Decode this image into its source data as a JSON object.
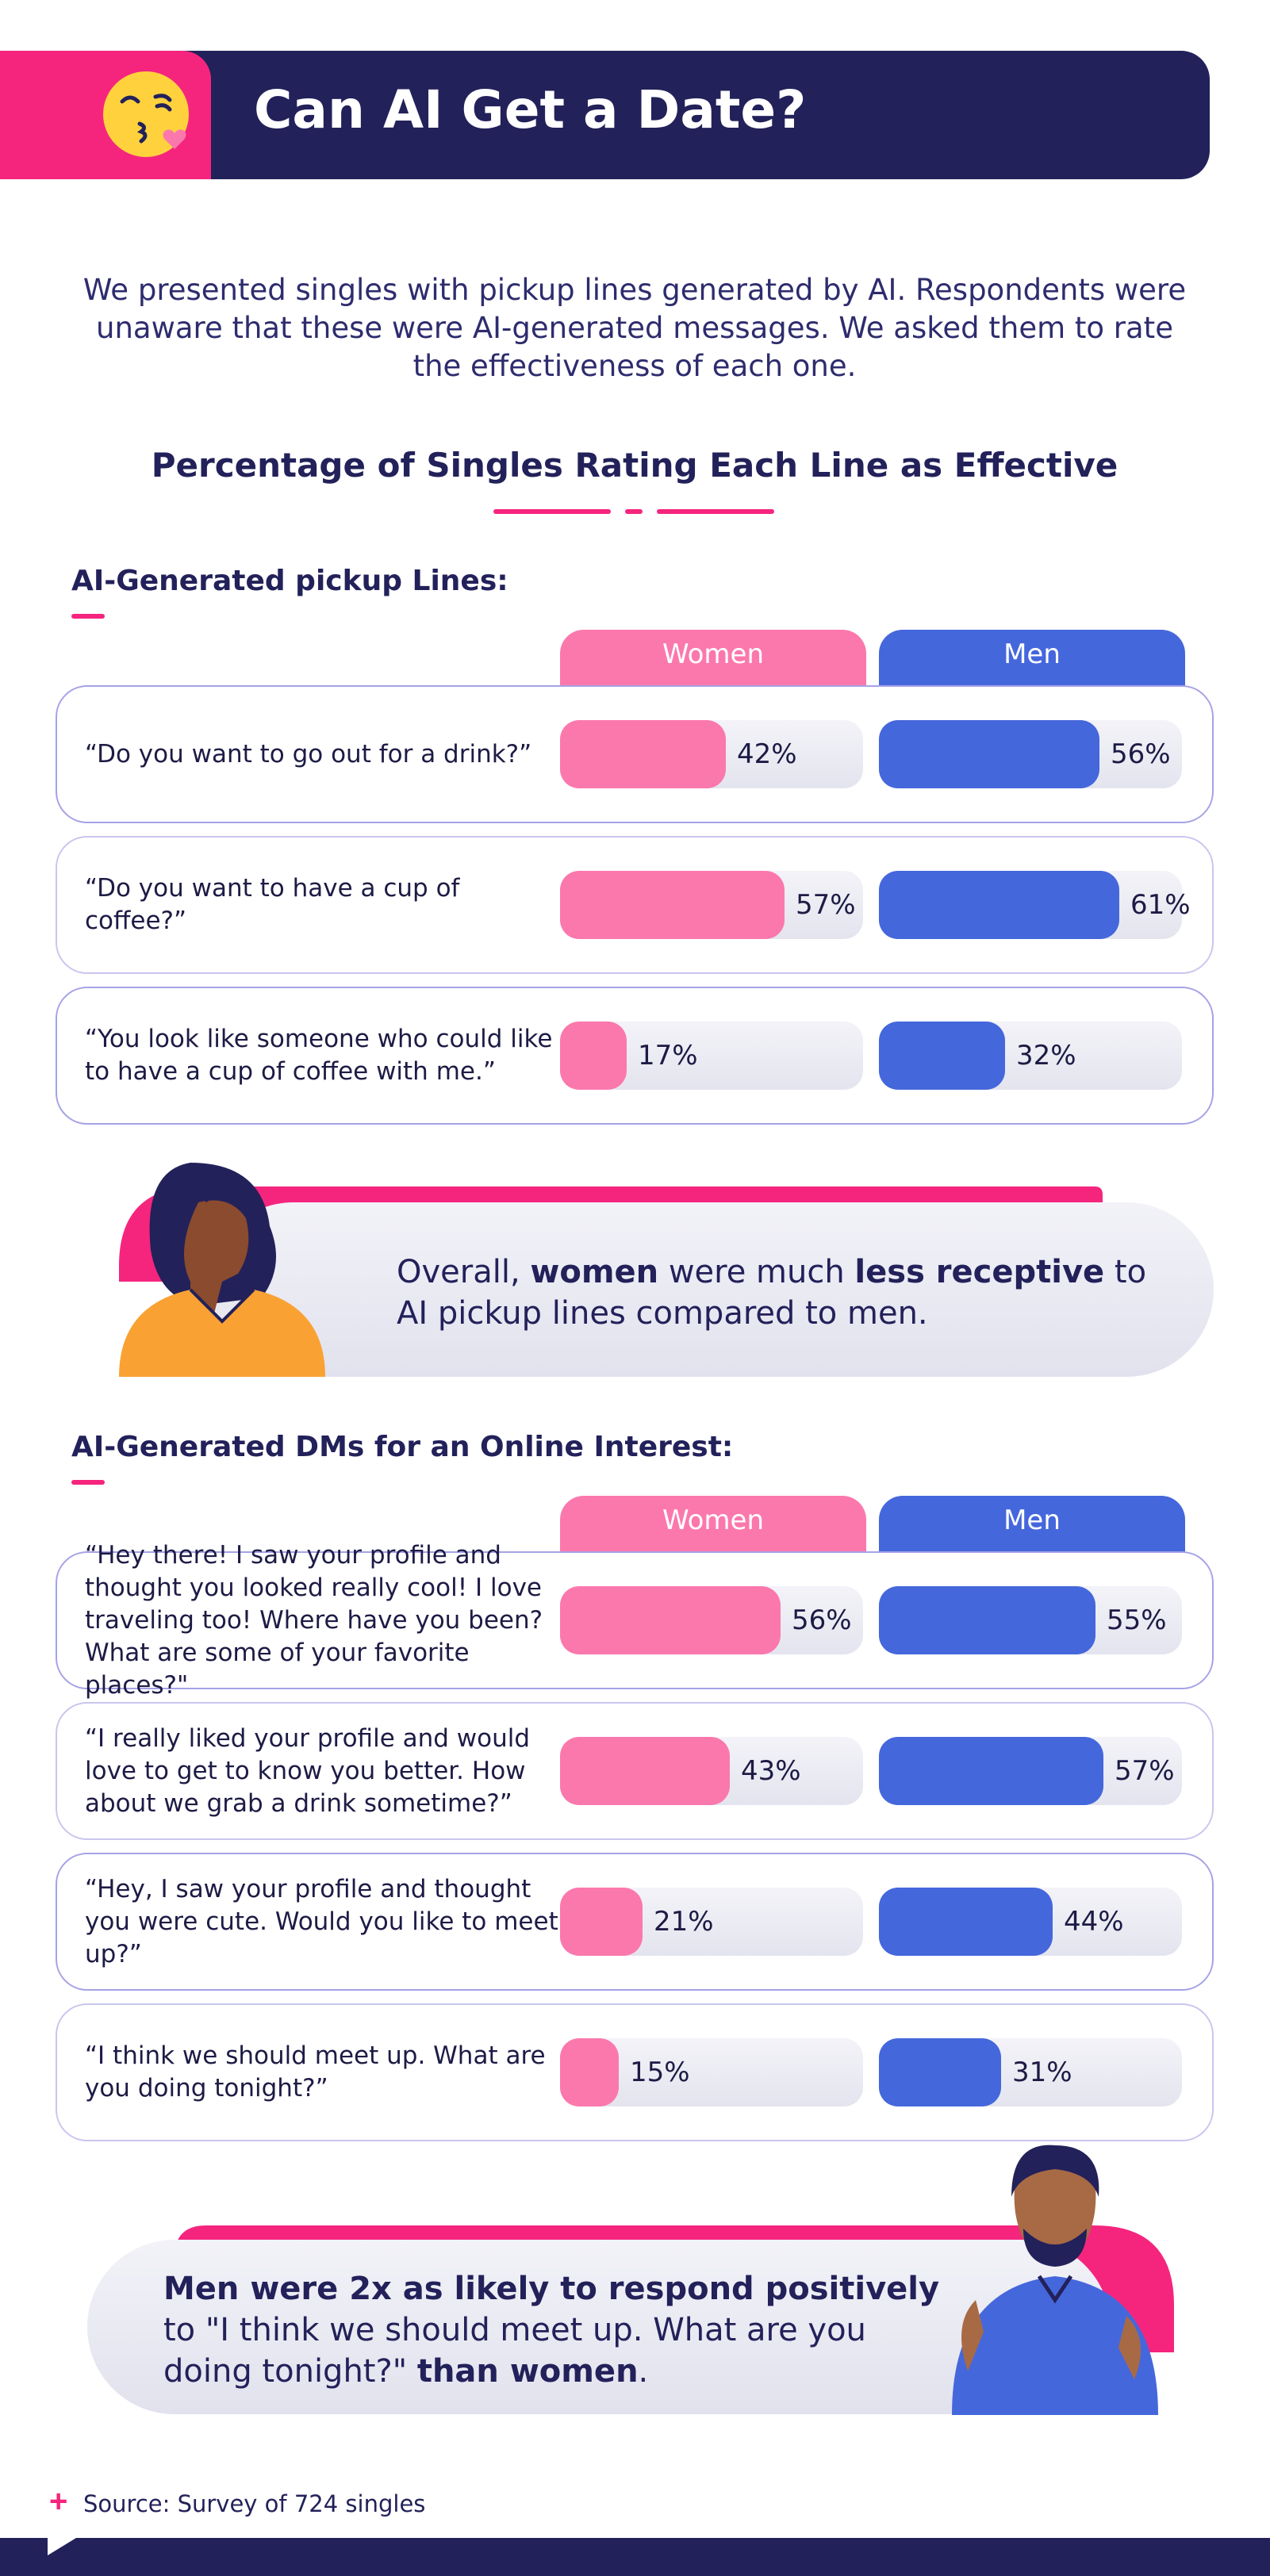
{
  "header": {
    "title": "Can AI Get a Date?",
    "emoji_icon": "kiss-emoji-icon"
  },
  "intro": "We presented singles with pickup lines generated by AI. Respondents were unaware that these were AI-generated messages. We asked them to rate the effectiveness of each one.",
  "colors": {
    "navy": "#23215a",
    "pink": "#f5257e",
    "women": "#fb78ad",
    "men": "#4567dc"
  },
  "columns": {
    "women": "Women",
    "men": "Men"
  },
  "callouts": {
    "first": {
      "pre": "Overall, ",
      "b1": "women",
      "mid": " were much ",
      "b2": "less receptive",
      "post": " to AI pickup lines compared to men."
    },
    "second": {
      "b1": "Men were 2x as likely to respond positively",
      "mid": " to \"I think we should meet up. What are you doing tonight?\" ",
      "b2": "than women",
      "post": "."
    }
  },
  "source": "Source: Survey of 724 singles",
  "chart_data": {
    "type": "bar",
    "title": "Percentage of Singles Rating Each Line as Effective",
    "unit": "%",
    "ylim": [
      0,
      100
    ],
    "series_names": [
      "Women",
      "Men"
    ],
    "groups": [
      {
        "title": "AI-Generated pickup Lines:",
        "rows": [
          {
            "label": "“Do you want to go out for a drink?”",
            "women": 42,
            "men": 56,
            "women_label": "42%",
            "men_label": "56%"
          },
          {
            "label": "“Do you want to have a cup of coffee?”",
            "women": 57,
            "men": 61,
            "women_label": "57%",
            "men_label": "61%"
          },
          {
            "label": "“You look like someone who could like to have a cup of coffee with me.”",
            "women": 17,
            "men": 32,
            "women_label": "17%",
            "men_label": "32%"
          }
        ]
      },
      {
        "title": "AI-Generated DMs for an Online Interest:",
        "rows": [
          {
            "label": "“Hey there! I saw your profile and thought you looked really cool! I love traveling too! Where have you been? What are some of your favorite places?\"",
            "women": 56,
            "men": 55,
            "women_label": "56%",
            "men_label": "55%"
          },
          {
            "label": "“I really liked your profile and would love to get to know you better. How about we grab a drink sometime?”",
            "women": 43,
            "men": 57,
            "women_label": "43%",
            "men_label": "57%"
          },
          {
            "label": "“Hey, I saw your profile and thought you were cute. Would you like to meet up?”",
            "women": 21,
            "men": 44,
            "women_label": "21%",
            "men_label": "44%"
          },
          {
            "label": "“I think we should meet up. What are you doing tonight?”",
            "women": 15,
            "men": 31,
            "women_label": "15%",
            "men_label": "31%"
          }
        ]
      }
    ]
  }
}
